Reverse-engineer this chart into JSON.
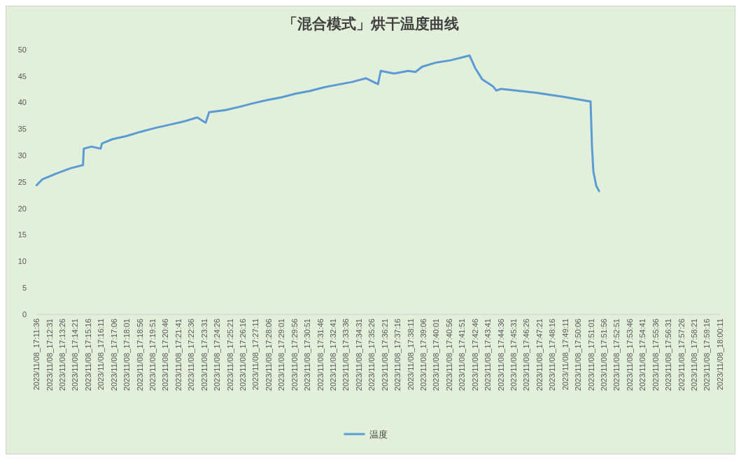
{
  "chart_data": {
    "type": "line",
    "title": "「混合模式」烘干温度曲线",
    "legend": "bottom",
    "marker": "none",
    "line_style": "solid",
    "xlim": [
      "2023-11-08T17:11:35",
      "2023-11-08T18:00:14"
    ],
    "xticks": [
      {
        "value": "2023-11-08T17:11:36",
        "label": "2023/11/08_17:11:36"
      },
      {
        "value": "2023-11-08T17:12:31",
        "label": "2023/11/08_17:12:31"
      },
      {
        "value": "2023-11-08T17:13:26",
        "label": "2023/11/08_17:13:26"
      },
      {
        "value": "2023-11-08T17:14:21",
        "label": "2023/11/08_17:14:21"
      },
      {
        "value": "2023-11-08T17:15:16",
        "label": "2023/11/08_17:15:16"
      },
      {
        "value": "2023-11-08T17:16:11",
        "label": "2023/11/08_17:16:11"
      },
      {
        "value": "2023-11-08T17:17:06",
        "label": "2023/11/08_17:17:06"
      },
      {
        "value": "2023-11-08T17:18:01",
        "label": "2023/11/08_17:18:01"
      },
      {
        "value": "2023-11-08T17:18:56",
        "label": "2023/11/08_17:18:56"
      },
      {
        "value": "2023-11-08T17:19:51",
        "label": "2023/11/08_17:19:51"
      },
      {
        "value": "2023-11-08T17:20:46",
        "label": "2023/11/08_17:20:46"
      },
      {
        "value": "2023-11-08T17:21:41",
        "label": "2023/11/08_17:21:41"
      },
      {
        "value": "2023-11-08T17:22:36",
        "label": "2023/11/08_17:22:36"
      },
      {
        "value": "2023-11-08T17:23:31",
        "label": "2023/11/08_17:23:31"
      },
      {
        "value": "2023-11-08T17:24:26",
        "label": "2023/11/08_17:24:26"
      },
      {
        "value": "2023-11-08T17:25:21",
        "label": "2023/11/08_17:25:21"
      },
      {
        "value": "2023-11-08T17:26:16",
        "label": "2023/11/08_17:26:16"
      },
      {
        "value": "2023-11-08T17:27:11",
        "label": "2023/11/08_17:27:11"
      },
      {
        "value": "2023-11-08T17:28:06",
        "label": "2023/11/08_17:28:06"
      },
      {
        "value": "2023-11-08T17:29:01",
        "label": "2023/11/08_17:29:01"
      },
      {
        "value": "2023-11-08T17:29:56",
        "label": "2023/11/08_17:29:56"
      },
      {
        "value": "2023-11-08T17:30:51",
        "label": "2023/11/08_17:30:51"
      },
      {
        "value": "2023-11-08T17:31:46",
        "label": "2023/11/08_17:31:46"
      },
      {
        "value": "2023-11-08T17:32:41",
        "label": "2023/11/08_17:32:41"
      },
      {
        "value": "2023-11-08T17:33:36",
        "label": "2023/11/08_17:33:36"
      },
      {
        "value": "2023-11-08T17:34:31",
        "label": "2023/11/08_17:34:31"
      },
      {
        "value": "2023-11-08T17:35:26",
        "label": "2023/11/08_17:35:26"
      },
      {
        "value": "2023-11-08T17:36:21",
        "label": "2023/11/08_17:36:21"
      },
      {
        "value": "2023-11-08T17:37:16",
        "label": "2023/11/08_17:37:16"
      },
      {
        "value": "2023-11-08T17:38:11",
        "label": "2023/11/08_17:38:11"
      },
      {
        "value": "2023-11-08T17:39:06",
        "label": "2023/11/08_17:39:06"
      },
      {
        "value": "2023-11-08T17:40:01",
        "label": "2023/11/08_17:40:01"
      },
      {
        "value": "2023-11-08T17:40:56",
        "label": "2023/11/08_17:40:56"
      },
      {
        "value": "2023-11-08T17:41:51",
        "label": "2023/11/08_17:41:51"
      },
      {
        "value": "2023-11-08T17:42:46",
        "label": "2023/11/08_17:42:46"
      },
      {
        "value": "2023-11-08T17:43:41",
        "label": "2023/11/08_17:43:41"
      },
      {
        "value": "2023-11-08T17:44:36",
        "label": "2023/11/08_17:44:36"
      },
      {
        "value": "2023-11-08T17:45:31",
        "label": "2023/11/08_17:45:31"
      },
      {
        "value": "2023-11-08T17:46:26",
        "label": "2023/11/08_17:46:26"
      },
      {
        "value": "2023-11-08T17:47:21",
        "label": "2023/11/08_17:47:21"
      },
      {
        "value": "2023-11-08T17:48:16",
        "label": "2023/11/08_17:48:16"
      },
      {
        "value": "2023-11-08T17:49:11",
        "label": "2023/11/08_17:49:11"
      },
      {
        "value": "2023-11-08T17:50:06",
        "label": "2023/11/08_17:50:06"
      },
      {
        "value": "2023-11-08T17:51:01",
        "label": "2023/11/08_17:51:01"
      },
      {
        "value": "2023-11-08T17:51:56",
        "label": "2023/11/08_17:51:56"
      },
      {
        "value": "2023-11-08T17:52:51",
        "label": "2023/11/08_17:52:51"
      },
      {
        "value": "2023-11-08T17:53:46",
        "label": "2023/11/08_17:53:46"
      },
      {
        "value": "2023-11-08T17:54:41",
        "label": "2023/11/08_17:54:41"
      },
      {
        "value": "2023-11-08T17:55:36",
        "label": "2023/11/08_17:55:36"
      },
      {
        "value": "2023-11-08T17:56:31",
        "label": "2023/11/08_17:56:31"
      },
      {
        "value": "2023-11-08T17:57:26",
        "label": "2023/11/08_17:57:26"
      },
      {
        "value": "2023-11-08T17:58:21",
        "label": "2023/11/08_17:58:21"
      },
      {
        "value": "2023-11-08T17:59:16",
        "label": "2023/11/08_17:59:16"
      },
      {
        "value": "2023-11-08T18:00:11",
        "label": "2023/11/08_18:00:11"
      }
    ],
    "ylim": [
      0,
      50
    ],
    "yticks": [
      0,
      5,
      10,
      15,
      20,
      25,
      30,
      35,
      40,
      45,
      50
    ],
    "series": [
      {
        "name": "温度",
        "color": "#5b9bd5",
        "x": [
          "2023-11-08T17:11:36",
          "2023-11-08T17:12:00",
          "2023-11-08T17:13:00",
          "2023-11-08T17:14:00",
          "2023-11-08T17:14:54",
          "2023-11-08T17:14:57",
          "2023-11-08T17:15:30",
          "2023-11-08T17:16:09",
          "2023-11-08T17:16:15",
          "2023-11-08T17:17:00",
          "2023-11-08T17:18:00",
          "2023-11-08T17:19:00",
          "2023-11-08T17:20:00",
          "2023-11-08T17:21:00",
          "2023-11-08T17:22:00",
          "2023-11-08T17:23:01",
          "2023-11-08T17:23:37",
          "2023-11-08T17:23:52",
          "2023-11-08T17:25:01",
          "2023-11-08T17:26:01",
          "2023-11-08T17:27:01",
          "2023-11-08T17:28:01",
          "2023-11-08T17:29:01",
          "2023-11-08T17:30:01",
          "2023-11-08T17:31:01",
          "2023-11-08T17:32:01",
          "2023-11-08T17:33:01",
          "2023-11-08T17:34:01",
          "2023-11-08T17:35:01",
          "2023-11-08T17:35:52",
          "2023-11-08T17:36:04",
          "2023-11-08T17:37:01",
          "2023-11-08T17:38:01",
          "2023-11-08T17:38:32",
          "2023-11-08T17:39:01",
          "2023-11-08T17:40:02",
          "2023-11-08T17:41:02",
          "2023-11-08T17:42:23",
          "2023-11-08T17:42:46",
          "2023-11-08T17:43:17",
          "2023-11-08T17:44:02",
          "2023-11-08T17:44:17",
          "2023-11-08T17:44:38",
          "2023-11-08T17:47:02",
          "2023-11-08T17:49:02",
          "2023-11-08T17:50:59",
          "2023-11-08T17:51:05",
          "2023-11-08T17:51:11",
          "2023-11-08T17:51:23",
          "2023-11-08T17:51:35"
        ],
        "values": [
          24.4,
          25.5,
          26.6,
          27.6,
          28.2,
          31.3,
          31.7,
          31.3,
          32.3,
          33.1,
          33.7,
          34.5,
          35.2,
          35.8,
          36.4,
          37.2,
          36.2,
          38.2,
          38.6,
          39.2,
          39.9,
          40.5,
          41.0,
          41.7,
          42.2,
          42.9,
          43.4,
          43.9,
          44.6,
          43.5,
          46.0,
          45.5,
          46.0,
          45.8,
          46.8,
          47.6,
          48.0,
          48.9,
          46.6,
          44.4,
          43.1,
          42.3,
          42.6,
          41.9,
          41.1,
          40.2,
          31.6,
          27.0,
          24.3,
          23.3
        ]
      }
    ]
  }
}
